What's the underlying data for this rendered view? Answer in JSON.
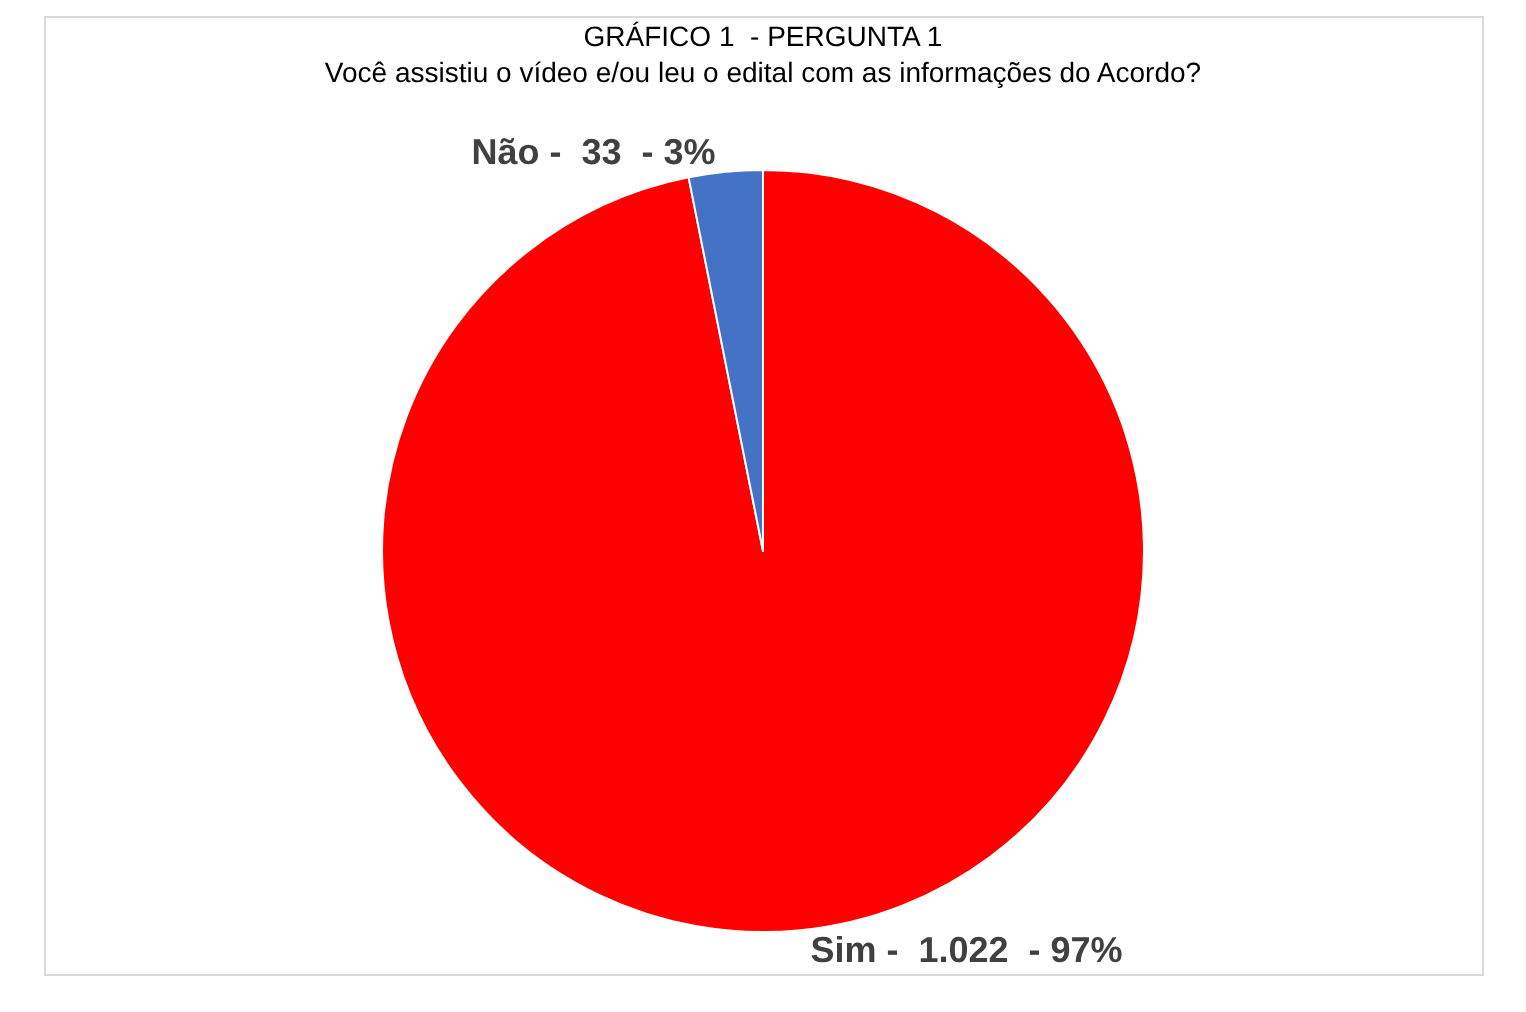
{
  "chart_data": {
    "type": "pie",
    "title": "GRÁFICO 1  - PERGUNTA 1\nVocê assistiu o vídeo e/ou leu o edital com as informações do Acordo?",
    "categories": [
      "Sim",
      "Não"
    ],
    "values": [
      1022,
      33
    ],
    "colors": [
      "#ff0000",
      "#4472c4"
    ],
    "value_labels": [
      "1.022  - 97%",
      "33  - 3%"
    ],
    "legend": false
  }
}
